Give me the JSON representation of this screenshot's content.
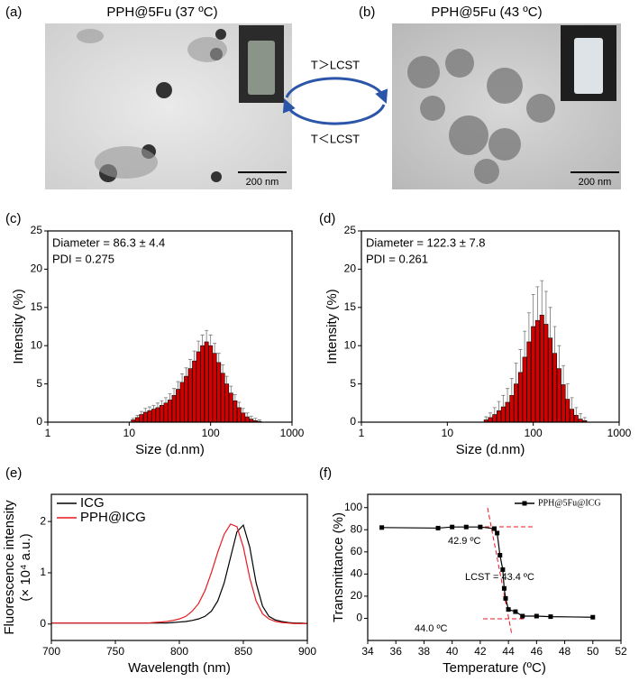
{
  "images": [
    {
      "label": "(a)",
      "title": "PPH@5Fu (37 ºC)",
      "scale_bar": "200 nm"
    },
    {
      "label": "(b)",
      "title": "PPH@5Fu (43 ºC)",
      "scale_bar": "200 nm"
    }
  ],
  "cycle": {
    "upper": "T＞LCST",
    "lower": "T＜LCST"
  },
  "chart_data": [
    {
      "type": "bar",
      "label": "(c)",
      "xlabel": "Size (d.nm)",
      "ylabel": "Intensity (%)",
      "annotations": [
        "Diameter = 86.3 ± 4.4",
        "PDI = 0.275"
      ],
      "x": [
        11.2,
        12.6,
        14.1,
        15.8,
        17.8,
        20.0,
        22.4,
        25.1,
        28.2,
        31.6,
        35.5,
        39.8,
        44.7,
        50.1,
        56.2,
        63.1,
        70.8,
        79.4,
        89.1,
        100,
        112,
        126,
        141,
        158,
        178,
        200,
        224,
        251,
        282,
        316,
        355,
        398
      ],
      "values": [
        0.3,
        0.6,
        1.0,
        1.3,
        1.5,
        1.7,
        1.9,
        2.2,
        2.5,
        2.9,
        3.5,
        4.3,
        5.2,
        6.0,
        7.0,
        8.0,
        9.2,
        10.0,
        10.5,
        10.0,
        9.0,
        7.8,
        6.4,
        5.0,
        3.8,
        2.8,
        1.9,
        1.2,
        0.7,
        0.4,
        0.2,
        0.1
      ],
      "errors": [
        0.2,
        0.3,
        0.4,
        0.5,
        0.5,
        0.5,
        0.6,
        0.6,
        0.7,
        0.8,
        0.9,
        1.0,
        1.1,
        1.1,
        1.2,
        1.3,
        1.4,
        1.4,
        1.5,
        1.4,
        1.3,
        1.2,
        1.1,
        1.0,
        0.9,
        0.8,
        0.7,
        0.6,
        0.5,
        0.4,
        0.3,
        0.2
      ],
      "color": "#d40000",
      "xscale": "log",
      "xlim": [
        1,
        1000
      ],
      "xticks": [
        1,
        10,
        100,
        1000
      ],
      "ylim": [
        0,
        25
      ],
      "yticks": [
        0,
        5,
        10,
        15,
        20,
        25
      ]
    },
    {
      "type": "bar",
      "label": "(d)",
      "xlabel": "Size (d.nm)",
      "ylabel": "Intensity (%)",
      "annotations": [
        "Diameter = 122.3 ± 7.8",
        "PDI = 0.261"
      ],
      "x": [
        28.2,
        31.6,
        35.5,
        39.8,
        44.7,
        50.1,
        56.2,
        63.1,
        70.8,
        79.4,
        89.1,
        100,
        112,
        126,
        141,
        158,
        178,
        200,
        224,
        251,
        282,
        316,
        355,
        398
      ],
      "values": [
        0.3,
        0.6,
        1.0,
        1.5,
        2.0,
        2.6,
        3.5,
        5,
        6.5,
        8.5,
        10.5,
        12.5,
        13.3,
        14,
        12.8,
        11,
        9,
        7,
        4.9,
        3,
        1.7,
        0.9,
        0.4,
        0.2
      ],
      "errors": [
        0.4,
        0.6,
        0.9,
        1.2,
        1.5,
        1.8,
        2.2,
        2.7,
        3.0,
        3.4,
        3.8,
        4.2,
        4.4,
        4.5,
        4.3,
        4.0,
        3.5,
        3.0,
        2.5,
        2.0,
        1.5,
        1.0,
        0.7,
        0.4
      ],
      "color": "#d40000",
      "xscale": "log",
      "xlim": [
        1,
        1000
      ],
      "xticks": [
        1,
        10,
        100,
        1000
      ],
      "ylim": [
        0,
        25
      ],
      "yticks": [
        0,
        5,
        10,
        15,
        20,
        25
      ]
    },
    {
      "type": "line",
      "label": "(e)",
      "xlabel": "Wavelength (nm)",
      "ylabel": "Fluorescence intensity",
      "ylabel2": "(× 10⁴ a.u.)",
      "x": [
        700,
        705,
        710,
        715,
        720,
        725,
        730,
        735,
        740,
        745,
        750,
        755,
        760,
        765,
        770,
        775,
        780,
        785,
        790,
        795,
        800,
        805,
        810,
        815,
        820,
        825,
        830,
        835,
        840,
        845,
        850,
        855,
        860,
        865,
        870,
        875,
        880,
        885,
        890,
        895,
        900
      ],
      "series": [
        {
          "name": "ICG",
          "color": "#000000",
          "values": [
            0.02,
            0.02,
            0.02,
            0.02,
            0.02,
            0.02,
            0.02,
            0.02,
            0.02,
            0.02,
            0.02,
            0.02,
            0.02,
            0.02,
            0.02,
            0.02,
            0.02,
            0.02,
            0.02,
            0.03,
            0.04,
            0.05,
            0.07,
            0.1,
            0.15,
            0.25,
            0.45,
            0.8,
            1.3,
            1.8,
            1.93,
            1.5,
            0.8,
            0.35,
            0.15,
            0.08,
            0.05,
            0.03,
            0.02,
            0.02,
            0.01
          ]
        },
        {
          "name": "PPH@ICG",
          "color": "#e8191f",
          "values": [
            0.02,
            0.02,
            0.02,
            0.02,
            0.02,
            0.02,
            0.02,
            0.02,
            0.02,
            0.02,
            0.02,
            0.02,
            0.02,
            0.02,
            0.02,
            0.02,
            0.03,
            0.04,
            0.05,
            0.07,
            0.1,
            0.15,
            0.25,
            0.4,
            0.65,
            1.0,
            1.4,
            1.75,
            1.95,
            1.9,
            1.5,
            0.9,
            0.45,
            0.2,
            0.1,
            0.05,
            0.03,
            0.02,
            0.01,
            0.01,
            0.01
          ]
        }
      ],
      "xlim": [
        700,
        900
      ],
      "xticks": [
        700,
        750,
        800,
        850,
        900
      ],
      "ylim": [
        -0.32,
        2.53
      ],
      "yticks": [
        0,
        1,
        2
      ],
      "legend": "top-left"
    },
    {
      "type": "line",
      "label": "(f)",
      "xlabel": "Temperature (ºC)",
      "ylabel": "Transmittance (%)",
      "annotations": [
        "42.9 ºC",
        "LCST = 43.4 ºC",
        "44.0 ºC"
      ],
      "x": [
        35,
        39,
        40,
        41,
        42,
        43,
        43.2,
        43.4,
        43.6,
        43.7,
        43.8,
        44,
        44.5,
        45,
        46,
        47,
        50
      ],
      "series": [
        {
          "name": "PPH@5Fu@ICG",
          "color": "#000000",
          "values": [
            82,
            81.5,
            82.5,
            82.5,
            82.5,
            81,
            77,
            57,
            44,
            27,
            18,
            8,
            6,
            2,
            2,
            1.5,
            1
          ]
        }
      ],
      "markers": true,
      "xlim": [
        34,
        52
      ],
      "xticks": [
        34,
        36,
        38,
        40,
        42,
        44,
        46,
        48,
        50,
        52
      ],
      "ylim": [
        -20,
        112
      ],
      "yticks": [
        0,
        20,
        40,
        60,
        80,
        100
      ],
      "legend": "top-right"
    }
  ]
}
